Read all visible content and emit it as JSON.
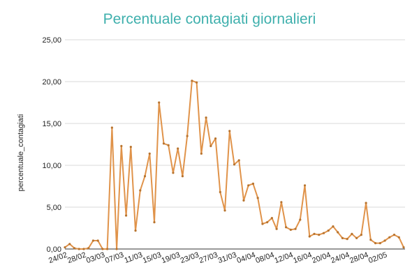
{
  "chart_data": {
    "type": "line",
    "title": "Percentuale contagiati giornalieri",
    "xlabel": "",
    "ylabel": "percentuale_contagiati",
    "ylim": [
      0,
      25
    ],
    "yticks": [
      "0,00",
      "5,00",
      "10,00",
      "15,00",
      "20,00",
      "25,00"
    ],
    "ytick_values": [
      0,
      5,
      10,
      15,
      20,
      25
    ],
    "xtick_labels": [
      "24/02",
      "28/02",
      "03/03",
      "07/03",
      "11/03",
      "15/03",
      "19/03",
      "23/03",
      "27/03",
      "31/03",
      "04/04",
      "08/04",
      "12/04",
      "16/04",
      "20/04",
      "24/04",
      "28/04",
      "02/05"
    ],
    "xtick_day_index": [
      0,
      4,
      8,
      12,
      16,
      20,
      24,
      28,
      32,
      36,
      40,
      44,
      48,
      52,
      56,
      60,
      64,
      68
    ],
    "grid": true,
    "legend": "none",
    "colors": {
      "series": "#e0934a",
      "title": "#3fb0ad",
      "grid": "#d9d9d9"
    },
    "series": [
      {
        "name": "",
        "values": [
          0.2,
          0.6,
          0.1,
          0.0,
          0.0,
          0.1,
          1.0,
          1.0,
          0.0,
          0.0,
          14.5,
          0.0,
          12.3,
          4.0,
          12.2,
          2.2,
          7.0,
          8.7,
          11.4,
          3.2,
          17.5,
          12.6,
          12.4,
          9.1,
          12.0,
          8.7,
          13.5,
          20.1,
          19.9,
          11.4,
          15.7,
          12.3,
          13.2,
          6.8,
          4.6,
          14.1,
          10.1,
          10.6,
          5.8,
          7.6,
          7.8,
          6.1,
          3.0,
          3.2,
          3.7,
          2.4,
          5.6,
          2.6,
          2.3,
          2.4,
          3.5,
          7.6,
          1.5,
          1.8,
          1.7,
          1.9,
          2.2,
          2.7,
          2.0,
          1.3,
          1.2,
          1.8,
          1.3,
          1.7,
          5.5,
          1.1,
          0.7,
          0.7,
          1.0,
          1.4,
          1.7,
          1.4,
          0.2
        ]
      }
    ]
  }
}
